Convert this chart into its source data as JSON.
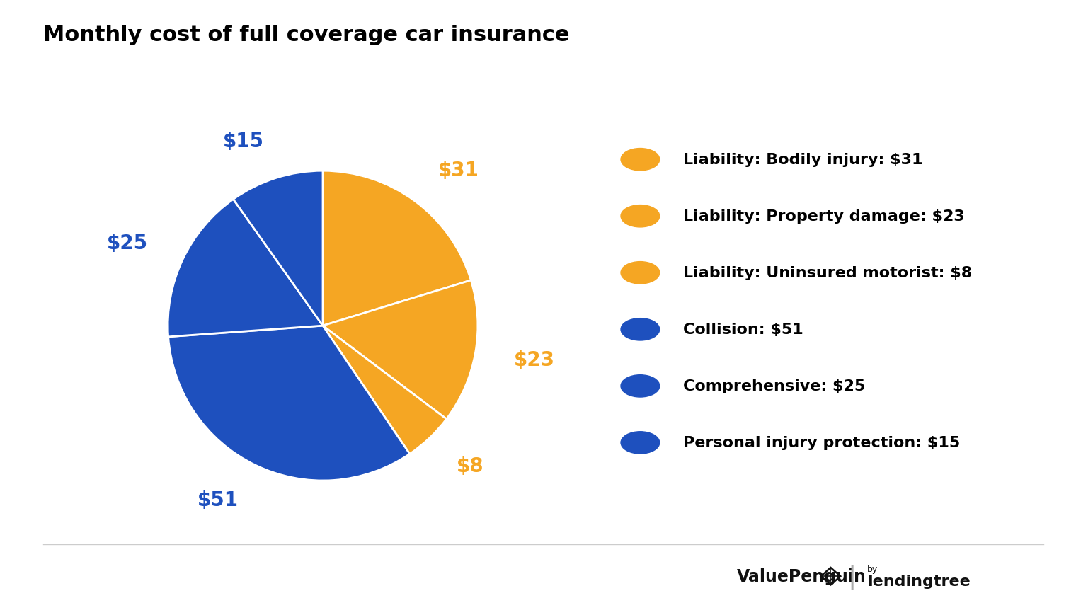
{
  "title": "Monthly cost of full coverage car insurance",
  "slices": [
    31,
    23,
    8,
    51,
    25,
    15
  ],
  "slice_labels": [
    "$31",
    "$23",
    "$8",
    "$51",
    "$25",
    "$15"
  ],
  "orange_color": "#F5A623",
  "blue_color": "#1E50BE",
  "colors": [
    "#F5A623",
    "#F5A623",
    "#F5A623",
    "#1E50BE",
    "#1E50BE",
    "#1E50BE"
  ],
  "legend_labels": [
    "Liability: Bodily injury: $31",
    "Liability: Property damage: $23",
    "Liability: Uninsured motorist: $8",
    "Collision: $51",
    "Comprehensive: $25",
    "Personal injury protection: $15"
  ],
  "legend_colors": [
    "#F5A623",
    "#F5A623",
    "#F5A623",
    "#1E50BE",
    "#1E50BE",
    "#1E50BE"
  ],
  "label_colors": [
    "#F5A623",
    "#F5A623",
    "#F5A623",
    "#1E50BE",
    "#1E50BE",
    "#1E50BE"
  ],
  "bg_color": "#FFFFFF",
  "title_fontsize": 22,
  "label_fontsize": 20,
  "legend_fontsize": 16,
  "startangle": 90,
  "wedge_edge_color": "#FFFFFF"
}
